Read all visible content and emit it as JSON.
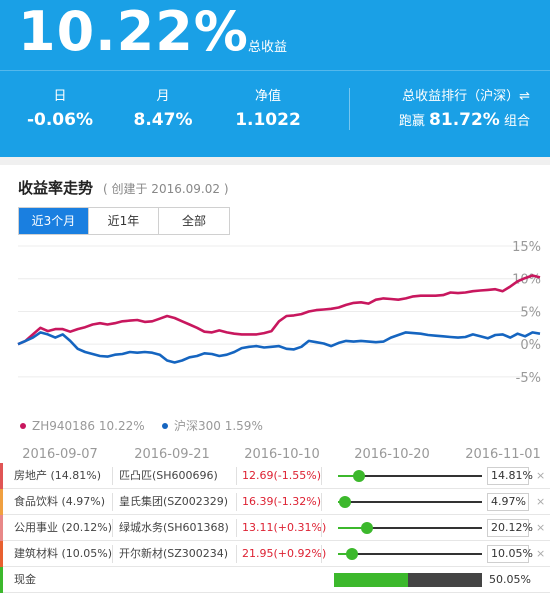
{
  "header": {
    "total_return": "10.22%",
    "total_return_label": "总收益",
    "stats": [
      {
        "label": "日",
        "value": "-0.06%"
      },
      {
        "label": "月",
        "value": "8.47%"
      },
      {
        "label": "净值",
        "value": "1.1022"
      }
    ],
    "rank_label": "总收益排行（沪深）⇌",
    "rank_prefix": "跑赢",
    "rank_value": "81.72%",
    "rank_suffix": "组合"
  },
  "chart_section": {
    "title": "收益率走势",
    "subtitle": "( 创建于 2016.09.02 )",
    "tabs": [
      {
        "label": "近3个月",
        "active": true
      },
      {
        "label": "近1年",
        "active": false
      },
      {
        "label": "全部",
        "active": false
      }
    ]
  },
  "chart_data": {
    "type": "line",
    "y_ticks": [
      "15%",
      "10%",
      "5%",
      "0%",
      "-5%"
    ],
    "y_values": [
      15,
      10,
      5,
      0,
      -5
    ],
    "ylim": [
      -7,
      15
    ],
    "x_ticks": [
      "2016-09-07",
      "2016-09-21",
      "2016-10-10",
      "2016-10-20",
      "2016-11-01"
    ],
    "colors": {
      "portfolio": "#c8175e",
      "index": "#1565c0"
    },
    "series": [
      {
        "name": "ZH940186 10.22%",
        "color": "#c8175e",
        "values": [
          0.0,
          0.5,
          1.5,
          2.5,
          2.0,
          2.3,
          2.3,
          1.9,
          2.3,
          2.6,
          3.0,
          3.2,
          3.0,
          3.2,
          3.5,
          3.6,
          3.7,
          3.4,
          3.5,
          3.9,
          4.3,
          4.0,
          3.5,
          3.0,
          2.5,
          1.9,
          1.8,
          2.1,
          1.8,
          1.6,
          1.5,
          1.5,
          1.5,
          1.7,
          2.0,
          3.5,
          4.3,
          4.4,
          4.6,
          5.0,
          5.2,
          5.3,
          5.4,
          5.6,
          6.0,
          6.3,
          6.4,
          6.2,
          6.8,
          7.0,
          6.9,
          6.8,
          7.0,
          7.3,
          7.4,
          7.4,
          7.4,
          7.5,
          7.9,
          7.8,
          7.9,
          8.1,
          8.2,
          8.3,
          8.4,
          8.1,
          8.8,
          9.6,
          10.1,
          10.5,
          10.2
        ]
      },
      {
        "name": "沪深300 1.59%",
        "color": "#1565c0",
        "values": [
          0.0,
          0.5,
          1.0,
          1.8,
          1.5,
          1.0,
          1.5,
          0.5,
          -0.7,
          -1.2,
          -1.5,
          -1.8,
          -1.9,
          -1.6,
          -1.5,
          -1.2,
          -1.3,
          -1.2,
          -1.3,
          -1.6,
          -2.5,
          -2.8,
          -2.5,
          -2.0,
          -1.8,
          -1.4,
          -1.5,
          -1.8,
          -1.6,
          -1.2,
          -0.6,
          -0.4,
          -0.3,
          -0.5,
          -0.4,
          -0.3,
          -0.7,
          -0.8,
          -0.4,
          0.5,
          0.3,
          0.1,
          -0.3,
          0.2,
          0.5,
          0.4,
          0.5,
          0.4,
          0.3,
          0.4,
          1.0,
          1.4,
          1.8,
          1.7,
          1.6,
          1.4,
          1.3,
          1.2,
          1.1,
          1.0,
          1.1,
          1.5,
          1.2,
          0.9,
          1.4,
          1.5,
          1.0,
          1.6,
          1.2,
          1.8,
          1.6
        ]
      }
    ]
  },
  "holdings": [
    {
      "sector": "房地产 (14.81%)",
      "stock": "匹凸匹(SH600696)",
      "price": "12.69(-1.55%)",
      "dir": "down",
      "weight": 0.1481,
      "weight_label": "14.81%",
      "color": "#e05555"
    },
    {
      "sector": "食品饮料 (4.97%)",
      "stock": "皇氏集团(SZ002329)",
      "price": "16.39(-1.32%)",
      "dir": "down",
      "weight": 0.0497,
      "weight_label": "4.97%",
      "color": "#f0a040"
    },
    {
      "sector": "公用事业 (20.12%)",
      "stock": "绿城水务(SH601368)",
      "price": "13.11(+0.31%)",
      "dir": "up",
      "weight": 0.2012,
      "weight_label": "20.12%",
      "color": "#e88888"
    },
    {
      "sector": "建筑材料 (10.05%)",
      "stock": "开尔新材(SZ300234)",
      "price": "21.95(+0.92%)",
      "dir": "up",
      "weight": 0.1005,
      "weight_label": "10.05%",
      "color": "#e86030"
    }
  ],
  "cash": {
    "label": "现金",
    "weight": 0.5005,
    "weight_label": "50.05%",
    "color": "#3cb82c"
  },
  "close_glyph": "×"
}
